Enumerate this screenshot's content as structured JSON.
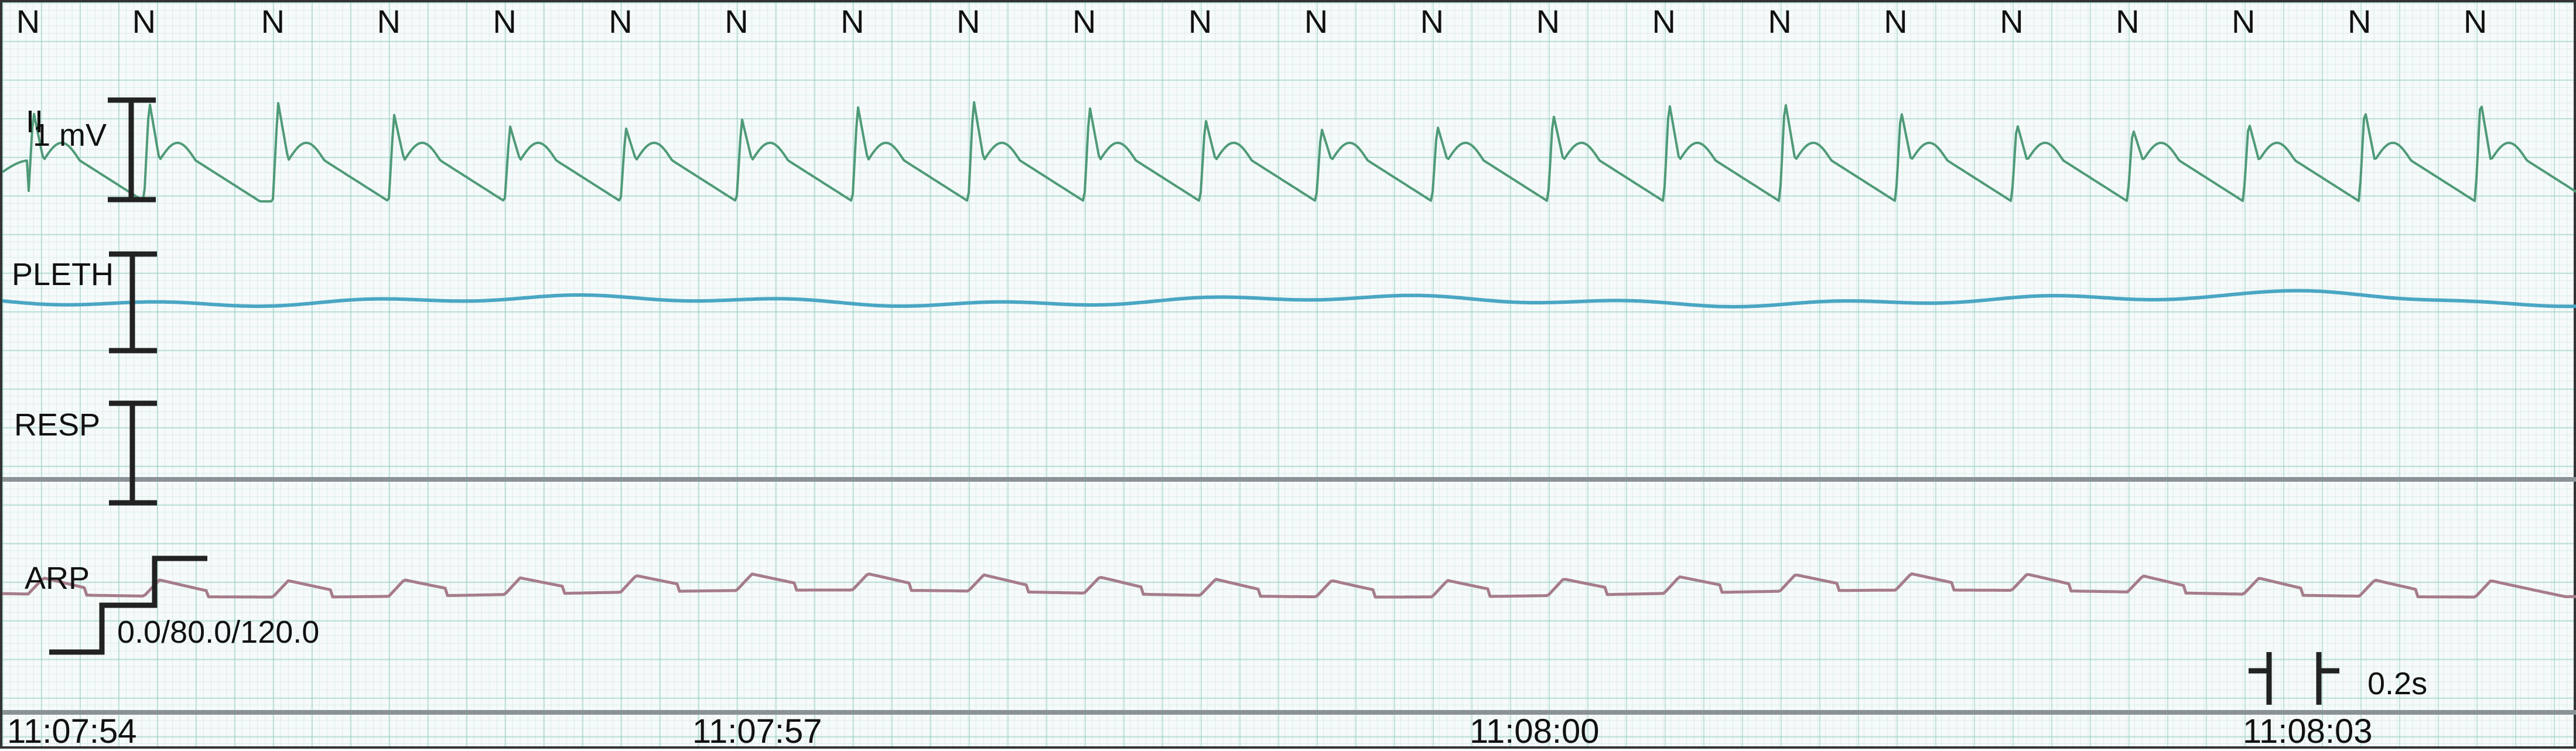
{
  "chart_data": {
    "type": "line",
    "title": "",
    "beat_labels": [
      "N",
      "N",
      "N",
      "N",
      "N",
      "N",
      "N",
      "N",
      "N",
      "N",
      "N",
      "N",
      "N",
      "N",
      "N",
      "N",
      "N",
      "N",
      "N",
      "N",
      "N",
      "N"
    ],
    "channels": [
      {
        "id": "ecg",
        "label": "II",
        "scale_label": "1 mV",
        "color": "#4f9a78",
        "style": "ecg"
      },
      {
        "id": "pleth",
        "label": "PLETH",
        "color": "#4aa6c4",
        "style": "pleth"
      },
      {
        "id": "resp",
        "label": "RESP",
        "color": "#8a9296",
        "style": "flat"
      },
      {
        "id": "arp",
        "label": "ARP",
        "scale_label": "0.0/80.0/120.0",
        "color": "#a67c8a",
        "style": "arp"
      }
    ],
    "time_labels": [
      "11:07:54",
      "11:07:57",
      "11:08:00",
      "11:08:03"
    ],
    "time_scale_label": "0.2s",
    "time_range_s": [
      0,
      10
    ],
    "beat_times_s": [
      0.1,
      0.55,
      1.05,
      1.5,
      1.95,
      2.4,
      2.85,
      3.3,
      3.75,
      4.2,
      4.65,
      5.1,
      5.55,
      6.0,
      6.45,
      6.9,
      7.35,
      7.8,
      8.25,
      8.7,
      9.15,
      9.6
    ]
  }
}
